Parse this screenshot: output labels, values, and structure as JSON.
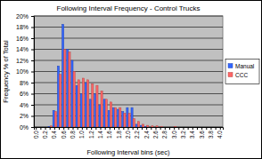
{
  "chart_data": {
    "type": "bar",
    "title": "Following Interval Frequency - Control Trucks",
    "x_label": "Following Interval bins (sec)",
    "y_label": "Frequency % of Total",
    "categories": [
      "0.0",
      null,
      "0.2",
      null,
      "0.4",
      null,
      "0.6",
      null,
      "0.8",
      null,
      "1.0",
      null,
      "1.2",
      null,
      "1.4",
      null,
      "1.6",
      null,
      "1.8",
      null,
      "2.0",
      null,
      "2.2",
      null,
      "2.4",
      null,
      "2.6",
      null,
      "2.8",
      null,
      "3.0",
      null,
      "3.2",
      null,
      "3.4",
      null,
      "3.6",
      null,
      "3.8",
      null,
      "4.0"
    ],
    "series": [
      {
        "name": "Manual",
        "color": "#3366ff",
        "values": [
          0,
          0,
          0,
          0.1,
          3,
          11,
          18.5,
          14,
          12,
          7.5,
          6,
          8,
          5,
          6,
          4,
          5,
          3,
          3.5,
          3.2,
          2.8,
          3.5,
          3.5,
          0.5,
          0.3,
          0.1,
          0,
          0,
          0,
          0,
          0,
          0,
          0,
          0,
          0,
          0,
          0,
          0,
          0,
          0,
          0,
          0
        ]
      },
      {
        "name": "CCC",
        "color": "#ff6666",
        "values": [
          0,
          0,
          0,
          0.2,
          2.8,
          9.5,
          14,
          13.5,
          10,
          8.5,
          8.8,
          8.5,
          7.8,
          7.5,
          6.5,
          5,
          4.5,
          3.5,
          3.5,
          2.5,
          2.5,
          1.5,
          1,
          0.5,
          0.3,
          0.2,
          0.2,
          0.1,
          0,
          0,
          0.1,
          0,
          0,
          0,
          0,
          0,
          0,
          0,
          0,
          0,
          0
        ]
      }
    ],
    "ylim": [
      0,
      20
    ],
    "yticks": [
      {
        "value": 0,
        "label": "0%"
      },
      {
        "value": 2,
        "label": "2%"
      },
      {
        "value": 4,
        "label": "4%"
      },
      {
        "value": 6,
        "label": "6%"
      },
      {
        "value": 8,
        "label": "8%"
      },
      {
        "value": 10,
        "label": "10%"
      },
      {
        "value": 12,
        "label": "12%"
      },
      {
        "value": 14,
        "label": "14%"
      },
      {
        "value": 16,
        "label": "16%"
      },
      {
        "value": 18,
        "label": "18%"
      },
      {
        "value": 20,
        "label": "20%"
      }
    ],
    "grid": true,
    "legend": "right"
  }
}
